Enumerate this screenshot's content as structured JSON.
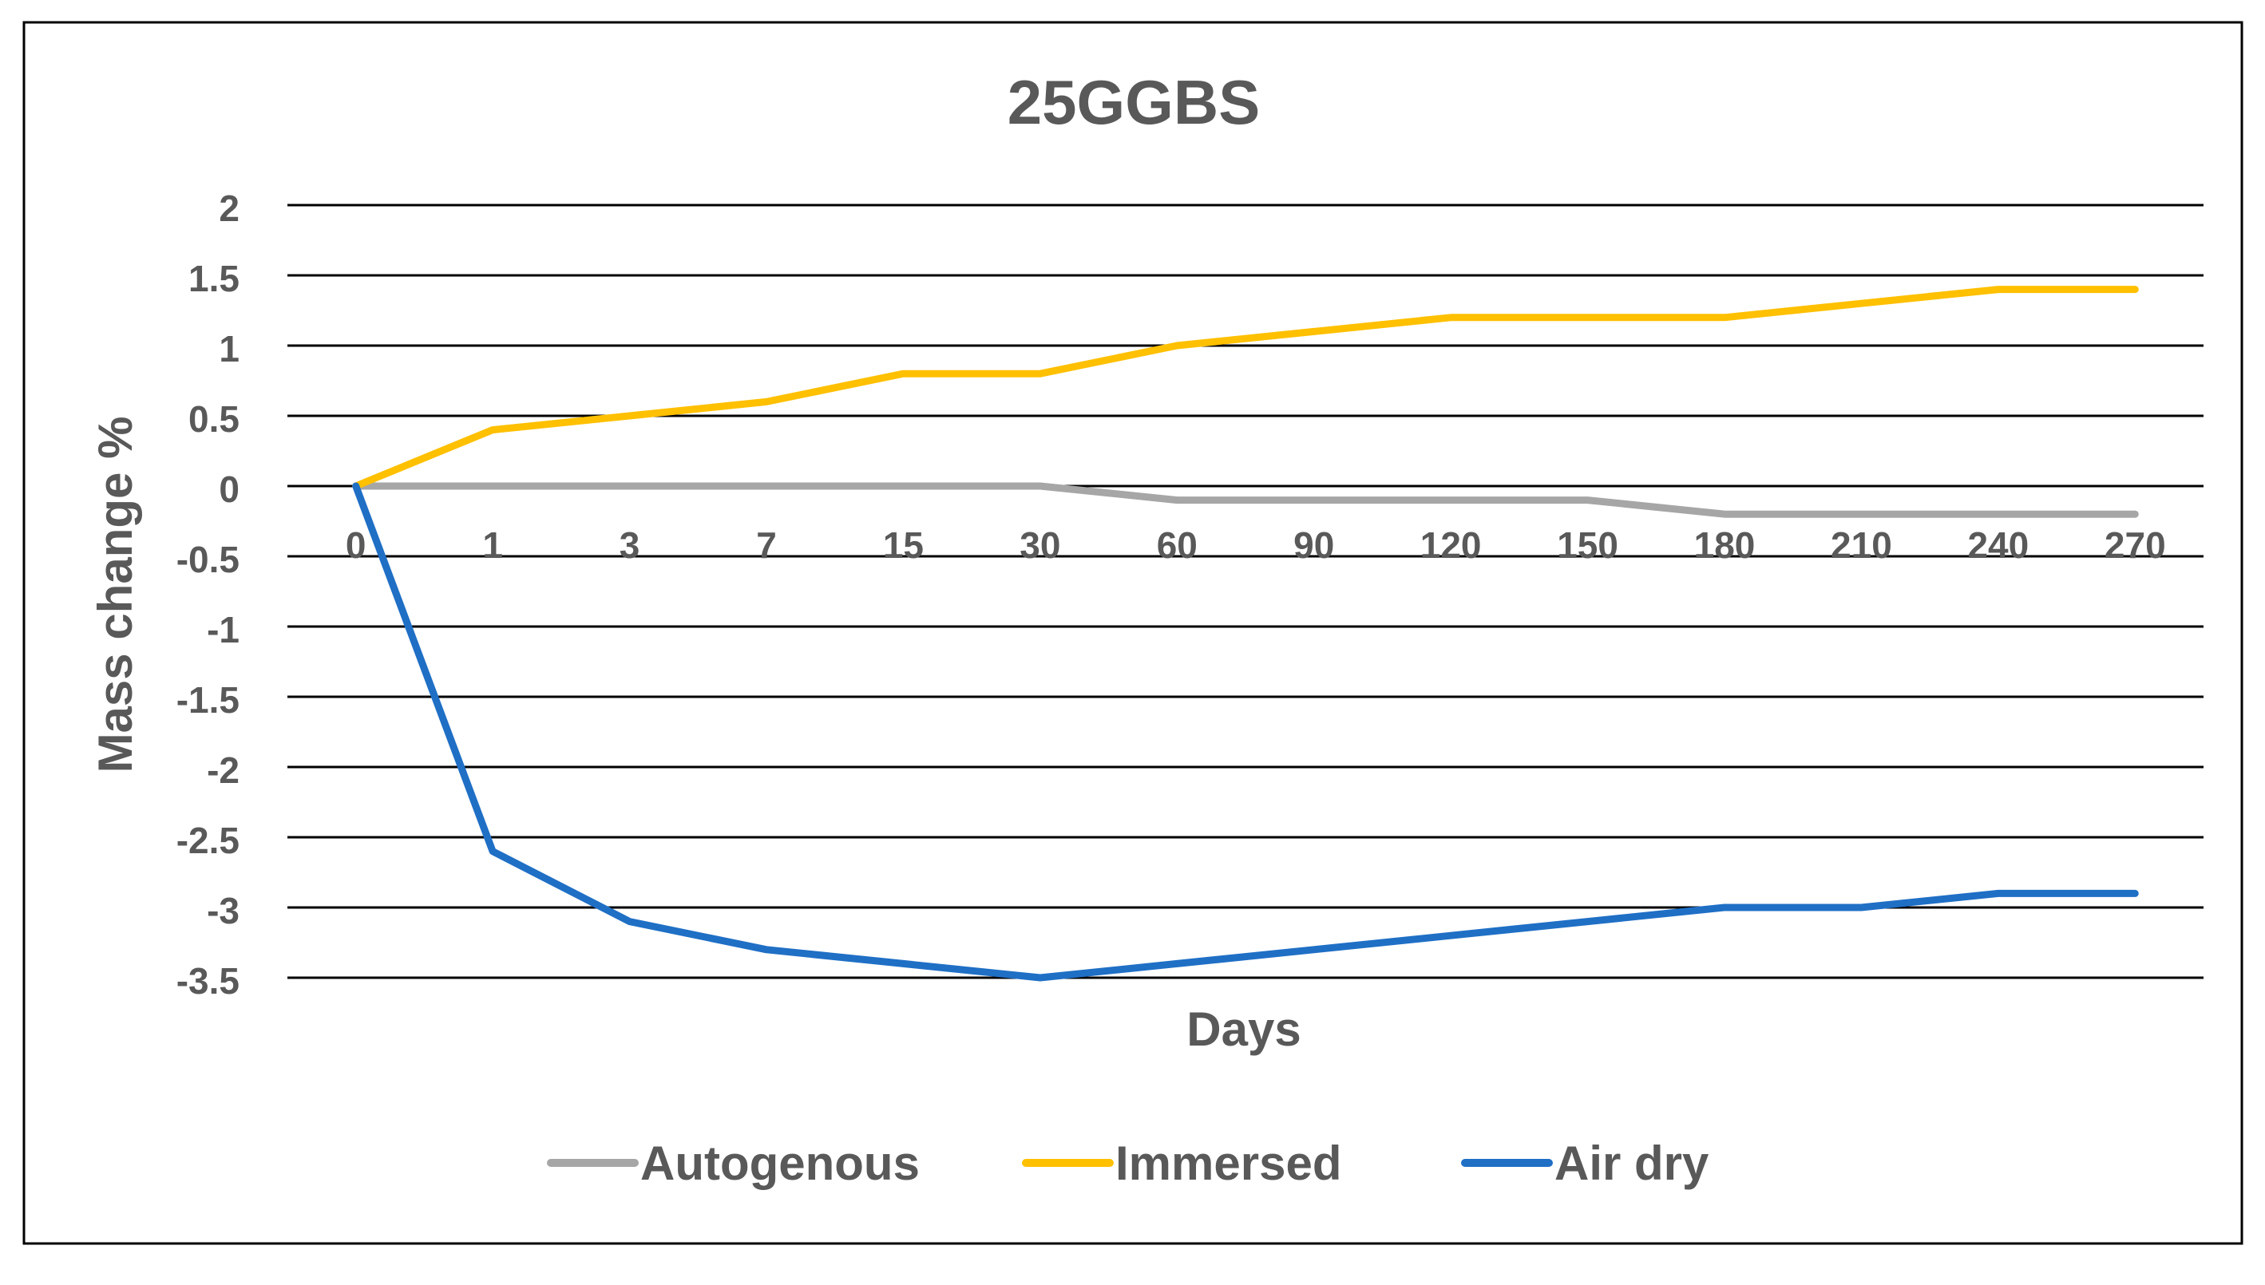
{
  "chart_data": {
    "type": "line",
    "title": "25GGBS",
    "xlabel": "Days",
    "ylabel": "Mass change %",
    "categories": [
      "0",
      "1",
      "3",
      "7",
      "15",
      "30",
      "60",
      "90",
      "120",
      "150",
      "180",
      "210",
      "240",
      "270"
    ],
    "y_ticks": [
      "2",
      "1.5",
      "1",
      "0.5",
      "0",
      "-0.5",
      "-1",
      "-1.5",
      "-2",
      "-2.5",
      "-3",
      "-3.5"
    ],
    "ylim": [
      -3.5,
      2
    ],
    "y_step": 0.5,
    "grid": true,
    "legend_position": "bottom",
    "series": [
      {
        "name": "Autogenous",
        "color": "#A6A6A6",
        "values": [
          0,
          0,
          0,
          0,
          0,
          0,
          -0.1,
          -0.1,
          -0.1,
          -0.1,
          -0.2,
          -0.2,
          -0.2,
          -0.2
        ]
      },
      {
        "name": "Immersed",
        "color": "#FFC000",
        "values": [
          0,
          0.4,
          0.5,
          0.6,
          0.8,
          0.8,
          1.0,
          1.1,
          1.2,
          1.2,
          1.2,
          1.3,
          1.4,
          1.4
        ]
      },
      {
        "name": "Air dry",
        "color": "#1F6FC5",
        "values": [
          0,
          -2.6,
          -3.1,
          -3.3,
          -3.4,
          -3.5,
          -3.4,
          -3.3,
          -3.2,
          -3.1,
          -3.0,
          -3.0,
          -2.9,
          -2.9
        ]
      }
    ]
  }
}
